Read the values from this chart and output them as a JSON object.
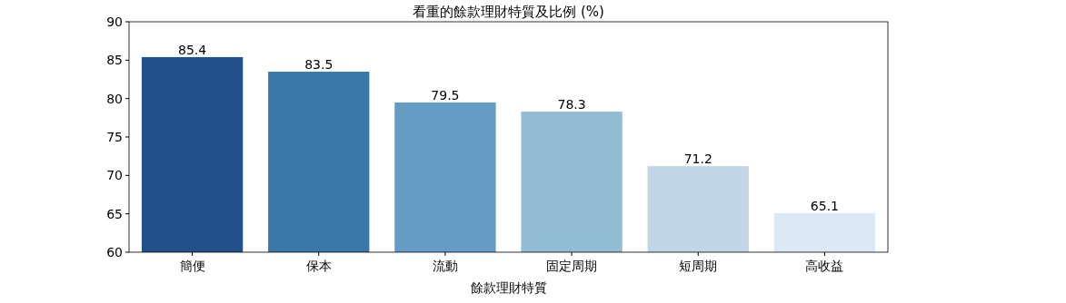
{
  "chart_data": {
    "type": "bar",
    "title": "看重的餘款理財特質及比例 (%)",
    "xlabel": "餘款理財特質",
    "categories": [
      "簡便",
      "保本",
      "流動",
      "固定周期",
      "短周期",
      "高收益"
    ],
    "values": [
      85.4,
      83.5,
      79.5,
      78.3,
      71.2,
      65.1
    ],
    "colors": [
      "#21508a",
      "#3b78aa",
      "#659cc3",
      "#95bcd5",
      "#c1d6e8",
      "#dce8f4"
    ],
    "ylim": [
      60,
      90
    ],
    "yticks": [
      60,
      65,
      70,
      75,
      80,
      85,
      90
    ],
    "data_labels": true
  }
}
